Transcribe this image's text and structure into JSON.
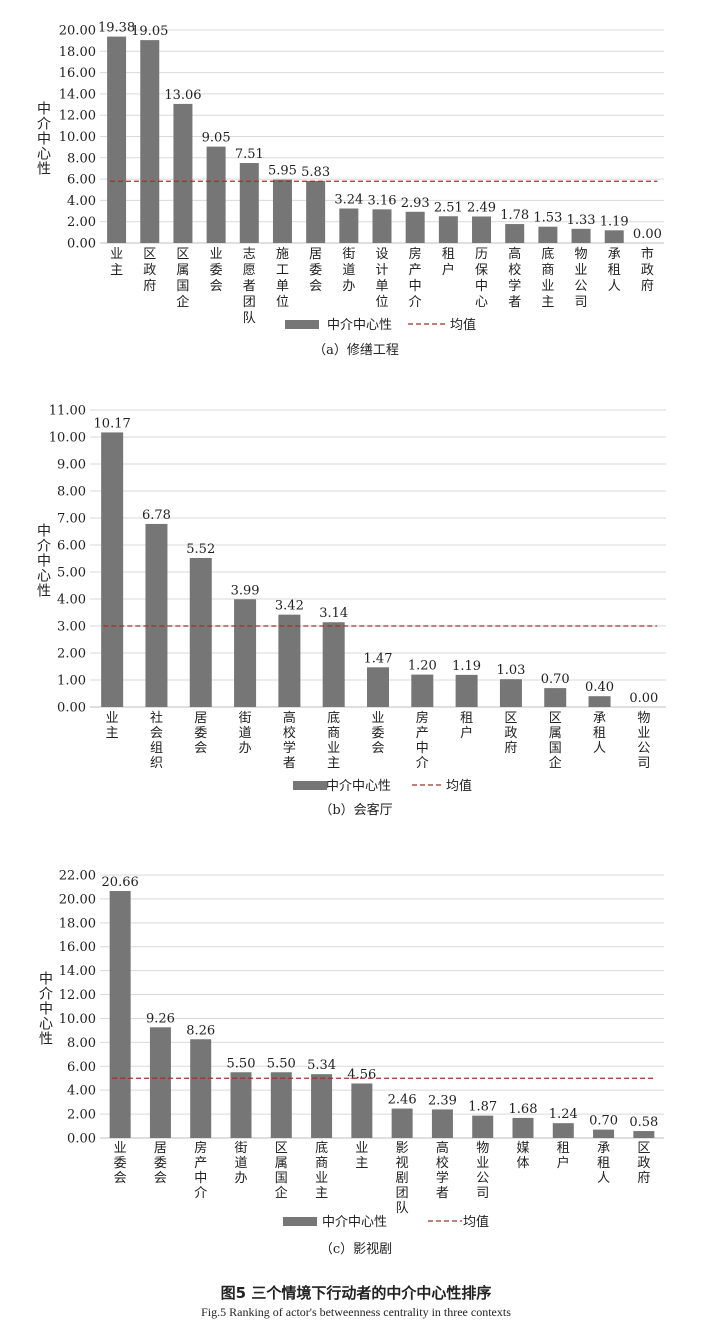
{
  "figure": {
    "title_cn": "图5 三个情境下行动者的中介中心性排序",
    "title_en": "Fig.5 Ranking of actor's betweenness centrality in three contexts"
  },
  "colors": {
    "bar": "#767676",
    "mean_line": "#a0322b",
    "grid": "#d9d9d9"
  },
  "chart_data": [
    {
      "type": "bar",
      "caption": "（a）修缮工程",
      "ylabel": "中介中心性",
      "ylim": [
        0,
        20
      ],
      "yticks": [
        "0.00",
        "2.00",
        "4.00",
        "6.00",
        "8.00",
        "10.00",
        "12.00",
        "14.00",
        "16.00",
        "18.00",
        "20.00"
      ],
      "categories": [
        "业主",
        "区政府",
        "区属国企",
        "业委会",
        "志愿者团队",
        "施工单位",
        "居委会",
        "街道办",
        "设计单位",
        "房产中介",
        "租户",
        "历保中心",
        "高校学者",
        "底商业主",
        "物业公司",
        "承租人",
        "市政府"
      ],
      "values": [
        19.38,
        19.05,
        13.06,
        9.05,
        7.51,
        5.95,
        5.83,
        3.24,
        3.16,
        2.93,
        2.51,
        2.49,
        1.78,
        1.53,
        1.33,
        1.19,
        0.0
      ],
      "labels": [
        "19.38",
        "19.05",
        "13.06",
        "9.05",
        "7.51",
        "5.95",
        "5.83",
        "3.24",
        "3.16",
        "2.93",
        "2.51",
        "2.49",
        "1.78",
        "1.53",
        "1.33",
        "1.19",
        "0.00"
      ],
      "mean": 5.8,
      "legend": {
        "series": "中介中心性",
        "mean": "均值"
      },
      "grid": true
    },
    {
      "type": "bar",
      "caption": "（b）会客厅",
      "ylabel": "中介中心性",
      "ylim": [
        0,
        11
      ],
      "yticks": [
        "0.00",
        "1.00",
        "2.00",
        "3.00",
        "4.00",
        "5.00",
        "6.00",
        "7.00",
        "8.00",
        "9.00",
        "10.00",
        "11.00"
      ],
      "categories": [
        "业主",
        "社会组织",
        "居委会",
        "街道办",
        "高校学者",
        "底商业主",
        "业委会",
        "房产中介",
        "租户",
        "区政府",
        "区属国企",
        "承租人",
        "物业公司"
      ],
      "values": [
        10.17,
        6.78,
        5.52,
        3.99,
        3.42,
        3.14,
        1.47,
        1.2,
        1.19,
        1.03,
        0.7,
        0.4,
        0.0
      ],
      "labels": [
        "10.17",
        "6.78",
        "5.52",
        "3.99",
        "3.42",
        "3.14",
        "1.47",
        "1.20",
        "1.19",
        "1.03",
        "0.70",
        "0.40",
        "0.00"
      ],
      "mean": 3.0,
      "legend": {
        "series": "中介中心性",
        "mean": "均值"
      },
      "grid": true
    },
    {
      "type": "bar",
      "caption": "（c）影视剧",
      "ylabel": "中介中心性",
      "ylim": [
        0,
        22
      ],
      "yticks": [
        "0.00",
        "2.00",
        "4.00",
        "6.00",
        "8.00",
        "10.00",
        "12.00",
        "14.00",
        "16.00",
        "18.00",
        "20.00",
        "22.00"
      ],
      "categories": [
        "业委会",
        "居委会",
        "房产中介",
        "街道办",
        "区属国企",
        "底商业主",
        "业主",
        "影视剧团队",
        "高校学者",
        "物业公司",
        "媒体",
        "租户",
        "承租人",
        "区政府"
      ],
      "values": [
        20.66,
        9.26,
        8.26,
        5.5,
        5.5,
        5.34,
        4.56,
        2.46,
        2.39,
        1.87,
        1.68,
        1.24,
        0.7,
        0.58
      ],
      "labels": [
        "20.66",
        "9.26",
        "8.26",
        "5.50",
        "5.50",
        "5.34",
        "4.56",
        "2.46",
        "2.39",
        "1.87",
        "1.68",
        "1.24",
        "0.70",
        "0.58"
      ],
      "mean": 5.0,
      "legend": {
        "series": "中介中心性",
        "mean": "均值"
      },
      "grid": true
    }
  ]
}
